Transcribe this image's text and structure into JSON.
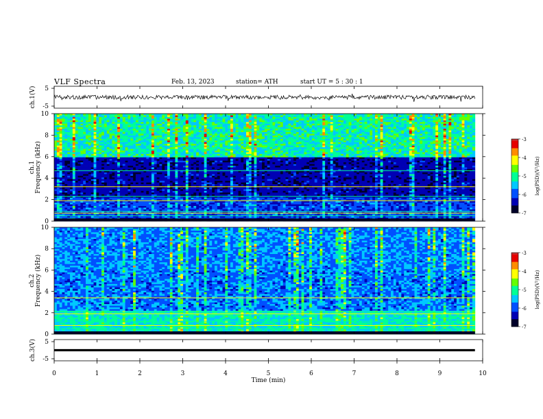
{
  "header": {
    "title": "VLF  Spectra",
    "date": "Feb. 13, 2023",
    "station": "station= ATH",
    "start": "start  UT  =    5  : 30 : 1"
  },
  "chart_data": [
    {
      "type": "line",
      "name": "ch1-waveform",
      "ylabel": "ch.1(V)",
      "ylim": [
        -5,
        5
      ],
      "xlim": [
        0,
        10
      ],
      "yticks": [
        "5",
        "-5"
      ],
      "description_values": {
        "mean": 0,
        "approx_amplitude": 1
      }
    },
    {
      "type": "heatmap",
      "name": "ch1-spectrogram",
      "ylabel": "ch.1\nFrequency  (kHz)",
      "ylabel_line1": "ch.1",
      "ylabel_line2": "Frequency  (kHz)",
      "ylim": [
        0,
        10
      ],
      "xlim": [
        0,
        10
      ],
      "yticks": [
        "0",
        "2",
        "4",
        "6",
        "8",
        "10"
      ],
      "colorbar": {
        "label": "log(PSD)(V²/Hz)",
        "range": [
          -7,
          -3
        ],
        "ticks": [
          "-3",
          "-4",
          "-5",
          "-6",
          "-7"
        ]
      }
    },
    {
      "type": "heatmap",
      "name": "ch2-spectrogram",
      "ylabel_line1": "ch.2",
      "ylabel_line2": "Frequency  (kHz)",
      "ylim": [
        0,
        10
      ],
      "xlim": [
        0,
        10
      ],
      "yticks": [
        "0",
        "2",
        "4",
        "6",
        "8",
        "10"
      ],
      "colorbar": {
        "label": "log(PSD)(V²/Hz)",
        "range": [
          -7,
          -3
        ],
        "ticks": [
          "-3",
          "-4",
          "-5",
          "-6",
          "-7"
        ]
      }
    },
    {
      "type": "line",
      "name": "ch3-waveform",
      "ylabel": "ch.3(V)",
      "ylim": [
        -5,
        5
      ],
      "xlim": [
        0,
        10
      ],
      "yticks": [
        "5",
        "-5"
      ],
      "constant_value": 0
    }
  ],
  "xaxis": {
    "label": "Time  (min)",
    "ticks": [
      "0",
      "1",
      "2",
      "3",
      "4",
      "5",
      "6",
      "7",
      "8",
      "9",
      "10"
    ],
    "data_end": 9.82
  },
  "colors": {
    "colormap": [
      "#00002a",
      "#0000b4",
      "#0050ff",
      "#00c8ff",
      "#00ff96",
      "#64ff00",
      "#ffff00",
      "#ff8c00",
      "#e60000",
      "#c83232",
      "#ffffff"
    ]
  }
}
